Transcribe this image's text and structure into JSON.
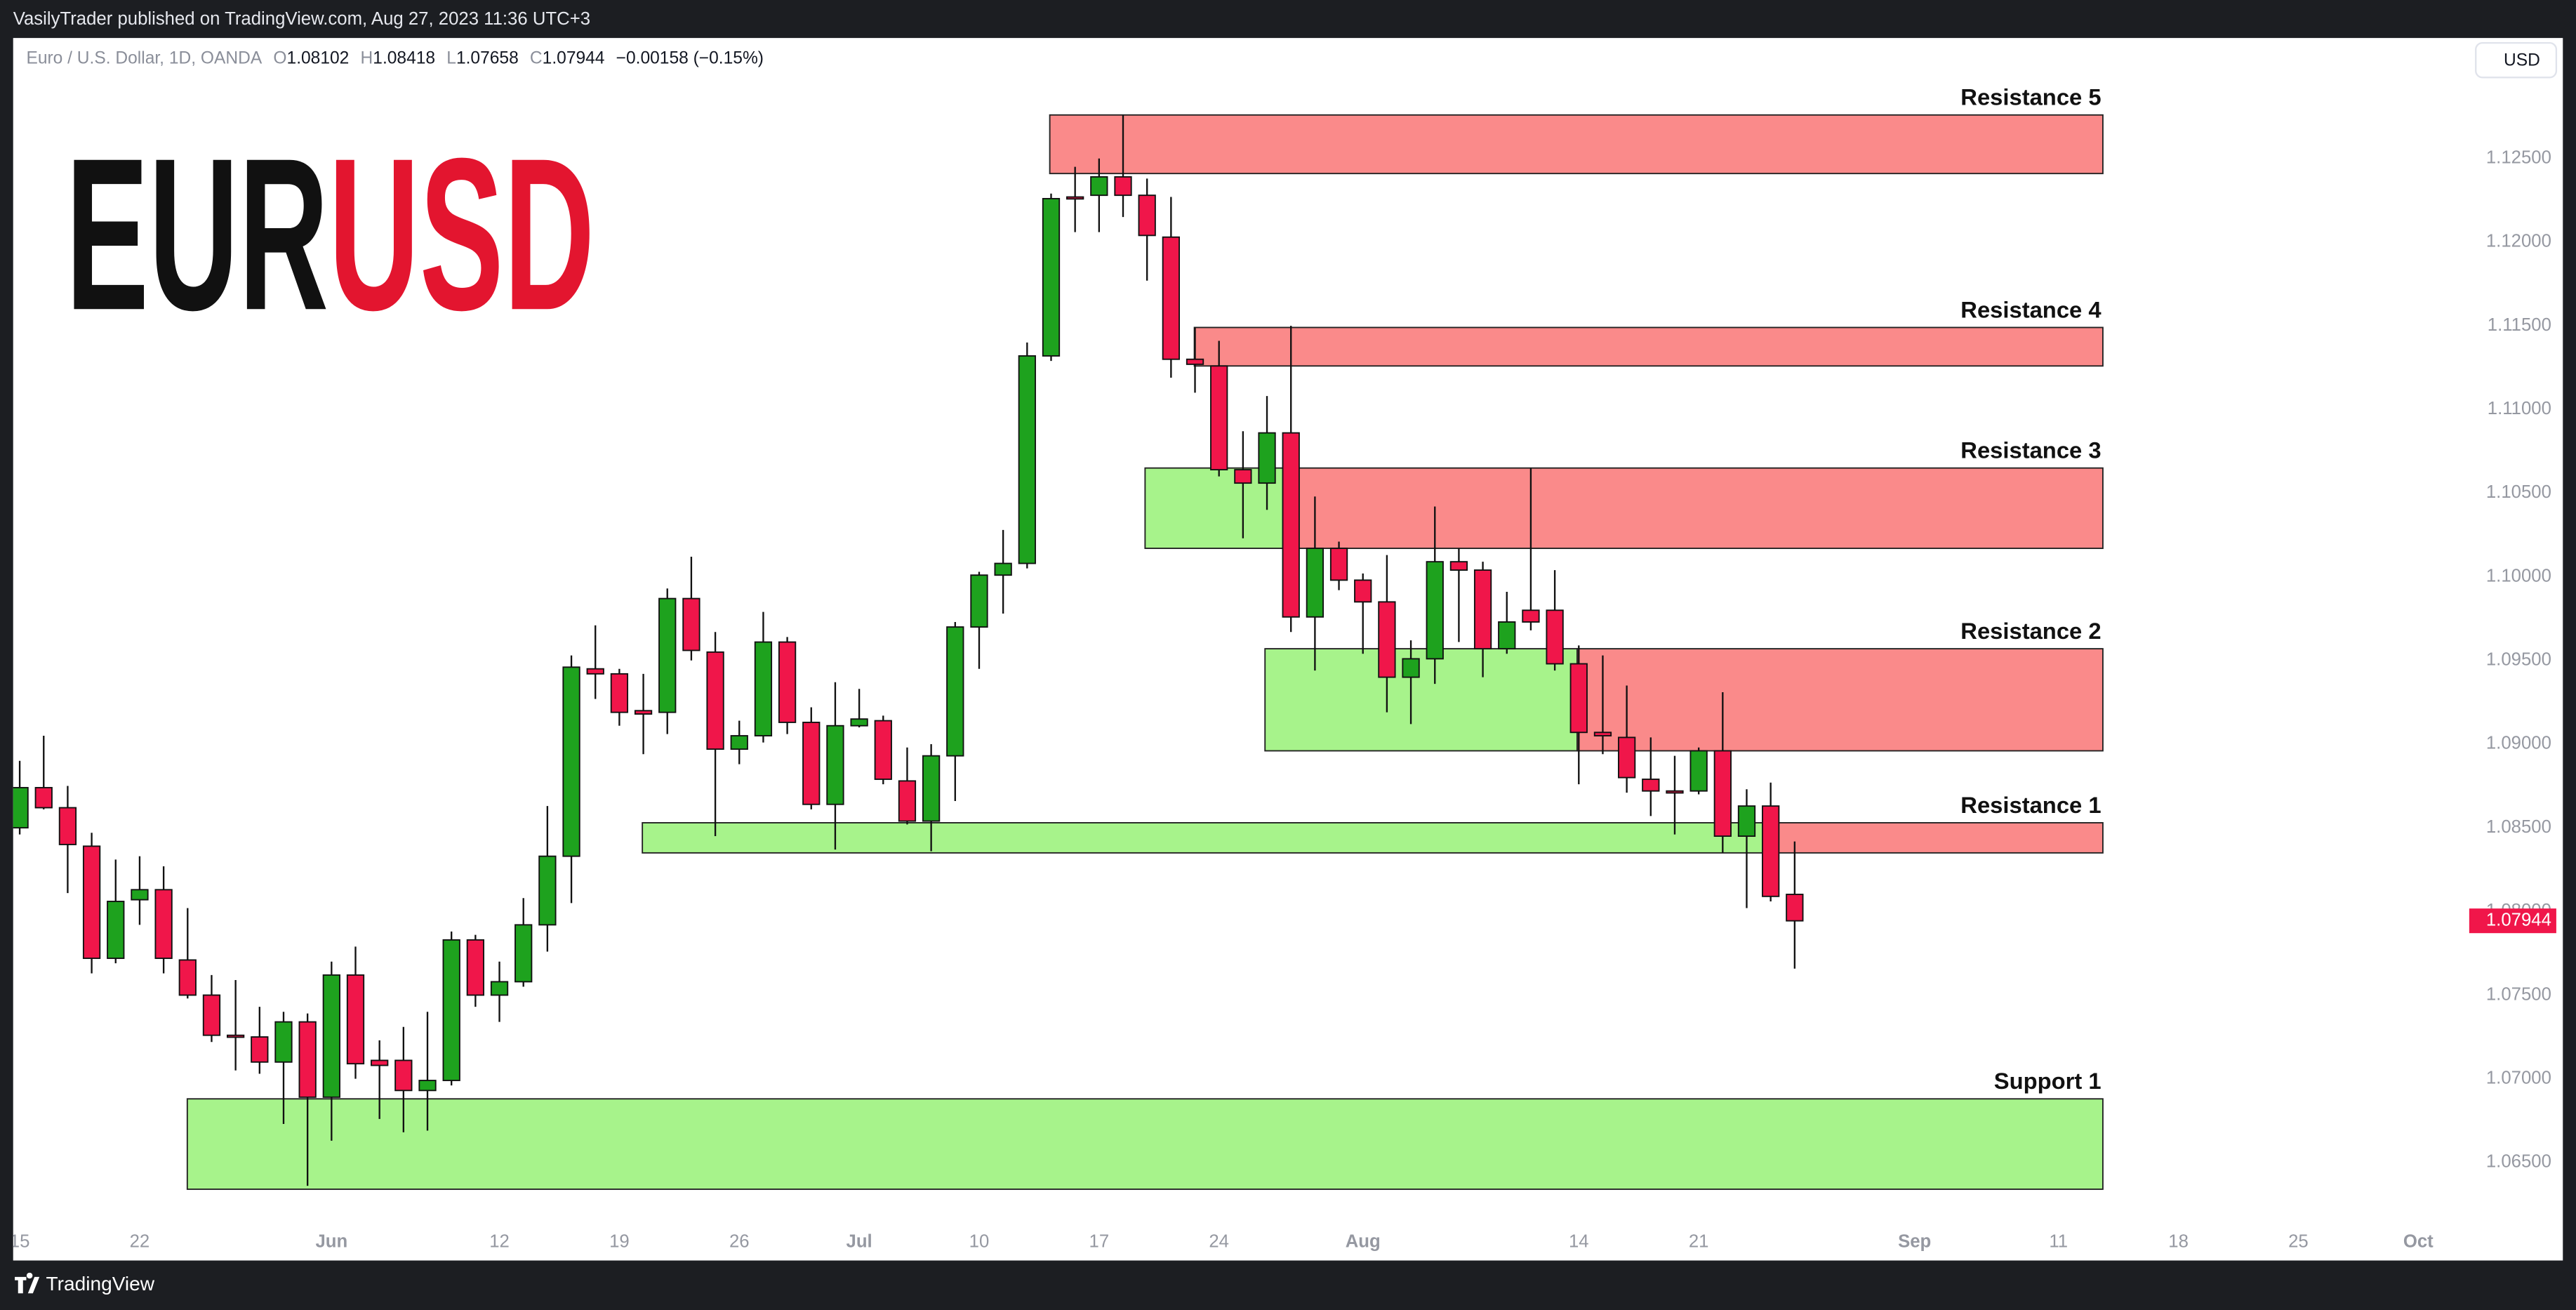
{
  "header": {
    "publisher": "VasilyTrader published on TradingView.com, Aug 27, 2023 11:36 UTC+3",
    "symbol": "Euro / U.S. Dollar, 1D, OANDA",
    "ohlc_letters": [
      "O",
      "H",
      "L",
      "C"
    ],
    "change": "−0.00158 (−0.15%)",
    "currency": "USD"
  },
  "footer": "TradingView",
  "chart_data": {
    "type": "candlestick",
    "title_parts": [
      "EUR",
      "USD"
    ],
    "title_colors": [
      "#111111",
      "#e3152f"
    ],
    "categories": [
      "15",
      null,
      null,
      null,
      null,
      "22",
      null,
      null,
      null,
      null,
      null,
      null,
      null,
      "Jun",
      null,
      null,
      null,
      null,
      null,
      null,
      "12",
      null,
      null,
      null,
      null,
      "19",
      null,
      null,
      null,
      null,
      "26",
      null,
      null,
      null,
      null,
      "Jul",
      null,
      null,
      null,
      null,
      "10",
      null,
      null,
      null,
      null,
      "17",
      null,
      null,
      null,
      null,
      "24",
      null,
      null,
      null,
      null,
      null,
      "Aug",
      null,
      null,
      null,
      null,
      null,
      null,
      null,
      null,
      "14",
      null,
      null,
      null,
      null,
      "21",
      null,
      null,
      null,
      null,
      null,
      null,
      null,
      null,
      "Sep",
      null,
      null,
      null,
      null,
      null,
      "11",
      null,
      null,
      null,
      null,
      "18",
      null,
      null,
      null,
      null,
      "25",
      null,
      null,
      null,
      null,
      "Oct",
      null
    ],
    "open": [
      1.085,
      1.0874,
      1.0862,
      1.0839,
      1.0772,
      1.0807,
      1.0813,
      1.0771,
      1.075,
      1.0726,
      1.0725,
      1.071,
      1.0734,
      1.0689,
      1.0762,
      1.0711,
      1.0711,
      1.0693,
      1.0699,
      1.0783,
      1.075,
      1.0758,
      1.0792,
      1.0833,
      1.0945,
      1.0942,
      1.092,
      1.0919,
      1.0987,
      1.0955,
      1.0897,
      1.0905,
      1.0961,
      1.0913,
      1.0864,
      1.0911,
      1.0914,
      1.0878,
      1.0854,
      1.0893,
      1.097,
      1.1001,
      1.1008,
      1.1132,
      1.1227,
      1.1228,
      1.1239,
      1.1228,
      1.1203,
      1.113,
      1.1126,
      1.1064,
      1.1056,
      1.1086,
      1.0976,
      1.1017,
      1.0998,
      1.0985,
      1.094,
      1.0951,
      1.1009,
      1.1004,
      1.0957,
      1.098,
      1.098,
      1.0948,
      1.0907,
      1.0904,
      1.0879,
      1.0872,
      1.0872,
      1.0896,
      1.0845,
      1.0863,
      1.08102,
      null,
      null,
      null,
      null,
      null,
      null,
      null,
      null,
      null,
      null,
      null,
      null,
      null,
      null,
      null,
      null,
      null,
      null,
      null,
      null,
      null,
      null,
      null,
      null,
      null,
      null,
      null
    ],
    "high": [
      1.089,
      1.0905,
      1.0875,
      1.0847,
      1.0831,
      1.0833,
      1.0827,
      1.0802,
      1.0762,
      1.0759,
      1.0743,
      1.074,
      1.0739,
      1.077,
      1.0779,
      1.0723,
      1.0731,
      1.074,
      1.0788,
      1.0786,
      1.077,
      1.0808,
      1.0863,
      1.0953,
      1.0971,
      1.0945,
      1.0942,
      1.0993,
      1.1012,
      1.0967,
      1.0914,
      1.0979,
      1.0964,
      1.0922,
      1.0937,
      1.0933,
      1.0917,
      1.0898,
      1.09,
      1.0973,
      1.1003,
      1.1028,
      1.114,
      1.1229,
      1.1245,
      1.125,
      1.1276,
      1.1238,
      1.1227,
      1.1149,
      1.1141,
      1.1087,
      1.1108,
      1.115,
      1.1048,
      1.1021,
      1.1002,
      1.1013,
      1.0962,
      1.1042,
      1.1017,
      1.1009,
      1.0991,
      1.1065,
      1.1004,
      1.0959,
      1.0953,
      1.0935,
      1.0904,
      1.0893,
      1.0898,
      1.0931,
      1.0873,
      1.0877,
      1.08418,
      null,
      null,
      null,
      null,
      null,
      null,
      null,
      null,
      null,
      null,
      null,
      null,
      null,
      null,
      null,
      null,
      null,
      null,
      null,
      null,
      null,
      null,
      null,
      null,
      null,
      null,
      null
    ],
    "low": [
      1.0846,
      1.0861,
      1.0811,
      1.0763,
      1.0769,
      1.0792,
      1.0763,
      1.0748,
      1.0722,
      1.0705,
      1.0703,
      1.0673,
      1.0636,
      1.0663,
      1.07,
      1.0676,
      1.0668,
      1.0669,
      1.0696,
      1.0743,
      1.0734,
      1.0755,
      1.0776,
      1.0805,
      1.0927,
      1.0911,
      1.0894,
      1.0906,
      1.095,
      1.0845,
      1.0888,
      1.0901,
      1.0906,
      1.0861,
      1.0837,
      1.091,
      1.0876,
      1.0852,
      1.0836,
      1.0866,
      1.0945,
      1.0978,
      1.1005,
      1.1129,
      1.1206,
      1.1206,
      1.1215,
      1.1177,
      1.1119,
      1.111,
      1.106,
      1.1023,
      1.104,
      1.0967,
      1.0944,
      1.0992,
      1.0954,
      1.0919,
      1.0912,
      1.0936,
      1.0961,
      1.094,
      1.0954,
      1.0968,
      1.0944,
      1.0876,
      1.0894,
      1.0871,
      1.0857,
      1.0846,
      1.087,
      1.0835,
      1.0802,
      1.0806,
      1.07658,
      null,
      null,
      null,
      null,
      null,
      null,
      null,
      null,
      null,
      null,
      null,
      null,
      null,
      null,
      null,
      null,
      null,
      null,
      null,
      null,
      null,
      null,
      null,
      null,
      null,
      null,
      null
    ],
    "close": [
      1.0874,
      1.0862,
      1.084,
      1.0772,
      1.0806,
      1.0813,
      1.0772,
      1.075,
      1.0726,
      1.0725,
      1.071,
      1.0734,
      1.0689,
      1.0762,
      1.0709,
      1.0708,
      1.0693,
      1.0699,
      1.0783,
      1.075,
      1.0758,
      1.0792,
      1.0833,
      1.0946,
      1.0942,
      1.0919,
      1.0918,
      1.0987,
      1.0956,
      1.0897,
      1.0905,
      1.0961,
      1.0913,
      1.0864,
      1.0911,
      1.0915,
      1.0879,
      1.0854,
      1.0893,
      1.097,
      1.1001,
      1.1008,
      1.1132,
      1.1226,
      1.1226,
      1.1239,
      1.1228,
      1.1204,
      1.113,
      1.1127,
      1.1064,
      1.1056,
      1.1086,
      1.0976,
      1.1017,
      1.0998,
      1.0985,
      1.094,
      1.0951,
      1.1009,
      1.1004,
      1.0957,
      1.0973,
      1.0973,
      1.0948,
      1.0907,
      1.0905,
      1.088,
      1.0872,
      1.0871,
      1.0896,
      1.0845,
      1.0863,
      1.0809,
      1.07944,
      null,
      null,
      null,
      null,
      null,
      null,
      null,
      null,
      null,
      null,
      null,
      null,
      null,
      null,
      null,
      null,
      null,
      null,
      null,
      null,
      null,
      null,
      null,
      null,
      null,
      null,
      null
    ],
    "up_color": "#1ea21e",
    "down_color": "#f0164a",
    "ylim": [
      1.0613,
      1.1322
    ],
    "yticks": [
      {
        "value": 1.125,
        "label": "1.12500"
      },
      {
        "value": 1.12,
        "label": "1.12000"
      },
      {
        "value": 1.115,
        "label": "1.11500"
      },
      {
        "value": 1.11,
        "label": "1.11000"
      },
      {
        "value": 1.105,
        "label": "1.10500"
      },
      {
        "value": 1.1,
        "label": "1.10000"
      },
      {
        "value": 1.095,
        "label": "1.09500"
      },
      {
        "value": 1.09,
        "label": "1.09000"
      },
      {
        "value": 1.085,
        "label": "1.08500"
      },
      {
        "value": 1.08,
        "label": "1.08000"
      },
      {
        "value": 1.075,
        "label": "1.07500"
      },
      {
        "value": 1.07,
        "label": "1.07000"
      },
      {
        "value": 1.065,
        "label": "1.06500"
      }
    ],
    "grid": false,
    "zone_colors": {
      "support": "#a7f38b",
      "resistance": "#fa8a8a"
    },
    "zones": [
      {
        "label": "Resistance 5",
        "high": 1.1276,
        "low": 1.1241
      },
      {
        "label": "Resistance 4",
        "high": 1.1149,
        "low": 1.1126
      },
      {
        "label": "Resistance 3",
        "high": 1.1065,
        "low": 1.1017
      },
      {
        "label": "Resistance 2",
        "high": 1.0957,
        "low": 1.0896
      },
      {
        "label": "Resistance 1",
        "high": 1.0853,
        "low": 1.0835
      },
      {
        "label": "Support 1",
        "high": 1.0688,
        "low": 1.0634
      }
    ]
  }
}
